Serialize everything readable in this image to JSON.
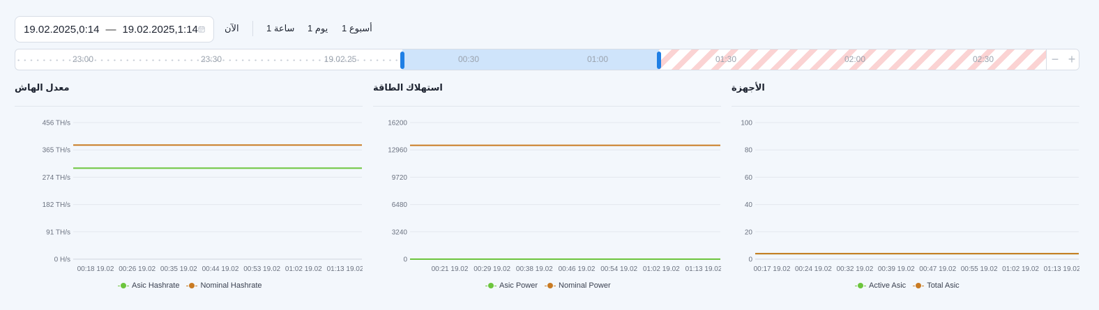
{
  "range": {
    "from": "19.02.2025,0:14",
    "separator": "—",
    "to": "19.02.2025,1:14"
  },
  "quick_ranges": {
    "now": "الآن",
    "hour": "1 ساعة",
    "day": "1 يوم",
    "week": "1 أسبوع"
  },
  "timeline": {
    "labels": [
      "23:00",
      "23:30",
      "19.02.25",
      "00:30",
      "01:00",
      "01:30",
      "02:00",
      "02:30"
    ],
    "zoom_out": "−",
    "zoom_in": "+"
  },
  "icons": {
    "calendar": "calendar-icon",
    "zoom_out": "minus-icon",
    "zoom_in": "plus-icon"
  },
  "colors": {
    "green": "#6cc53c",
    "orange": "#c97b22",
    "selection": "#cfe4fb",
    "handle": "#1f7fe5",
    "stripe": "#fbd3d3"
  },
  "charts": {
    "hashrate": {
      "title": "معدل الهاش",
      "chart_data": {
        "type": "line",
        "title": "معدل الهاش",
        "y_ticks": [
          "0 H/s",
          "91 TH/s",
          "182 TH/s",
          "274 TH/s",
          "365 TH/s",
          "456 TH/s"
        ],
        "ylim": [
          0,
          456
        ],
        "x_ticks": [
          "00:18 19.02",
          "00:26 19.02",
          "00:35 19.02",
          "00:44 19.02",
          "00:53 19.02",
          "01:02 19.02",
          "01:13 19.02"
        ],
        "series": [
          {
            "name": "Asic Hashrate",
            "color": "#6cc53c",
            "values": [
              304,
              304
            ]
          },
          {
            "name": "Nominal Hashrate",
            "color": "#c97b22",
            "values": [
              381,
              381
            ]
          }
        ]
      }
    },
    "power": {
      "title": "استهلاك الطاقة",
      "chart_data": {
        "type": "line",
        "title": "استهلاك الطاقة",
        "y_ticks": [
          "0",
          "3240",
          "6480",
          "9720",
          "12960",
          "16200"
        ],
        "ylim": [
          0,
          16200
        ],
        "x_ticks": [
          "00:21 19.02",
          "00:29 19.02",
          "00:38 19.02",
          "00:46 19.02",
          "00:54 19.02",
          "01:02 19.02",
          "01:13 19.02"
        ],
        "series": [
          {
            "name": "Asic Power",
            "color": "#6cc53c",
            "values": [
              0,
              0
            ]
          },
          {
            "name": "Nominal Power",
            "color": "#c97b22",
            "values": [
              13500,
              13500
            ]
          }
        ]
      }
    },
    "devices": {
      "title": "الأجهزة",
      "chart_data": {
        "type": "line",
        "title": "الأجهزة",
        "y_ticks": [
          "0",
          "20",
          "40",
          "60",
          "80",
          "100"
        ],
        "ylim": [
          0,
          100
        ],
        "x_ticks": [
          "00:17 19.02",
          "00:24 19.02",
          "00:32 19.02",
          "00:39 19.02",
          "00:47 19.02",
          "00:55 19.02",
          "01:02 19.02",
          "01:13 19.02"
        ],
        "series": [
          {
            "name": "Active Asic",
            "color": "#6cc53c",
            "values": [
              4,
              4
            ]
          },
          {
            "name": "Total Asic",
            "color": "#c97b22",
            "values": [
              4,
              4
            ]
          }
        ]
      }
    }
  }
}
